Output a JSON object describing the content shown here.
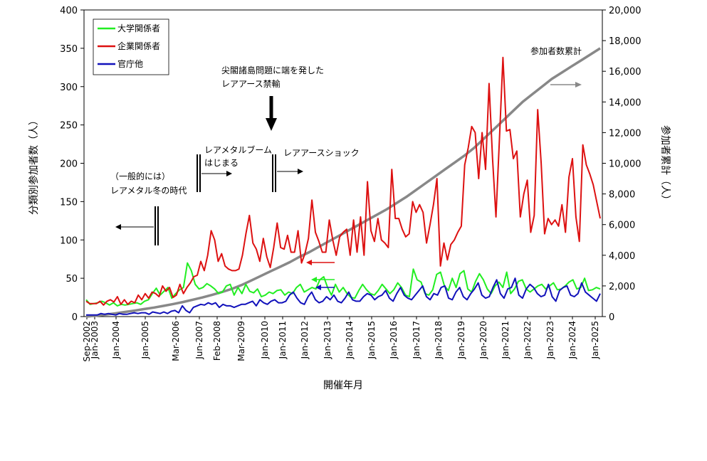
{
  "chart_data": {
    "type": "line",
    "xlabel": "開催年月",
    "ylabel_left": "分類別参加者数（人）",
    "ylabel_right": "参加者累計（人）",
    "ylim_left": [
      0,
      400
    ],
    "ylim_right": [
      0,
      20000
    ],
    "left_ticks": [
      "0",
      "50",
      "100",
      "150",
      "200",
      "250",
      "300",
      "350",
      "400"
    ],
    "right_ticks": [
      "0",
      "2,000",
      "4,000",
      "6,000",
      "8,000",
      "10,000",
      "12,000",
      "14,000",
      "16,000",
      "18,000",
      "20,000"
    ],
    "x_tick_labels": [
      "Sep-2002",
      "Jan-2003",
      "Jan-2004",
      "Jan-2005",
      "Mar-2006",
      "Jun-2007",
      "Feb-2008",
      "Mar-2009",
      "Jan-2010",
      "Jan-2011",
      "Jan-2012",
      "Jan-2013",
      "Jan-2014",
      "Jan-2015",
      "Jan-2016",
      "Jan-2017",
      "Jan-2018",
      "Jan-2019",
      "Jan-2020",
      "Jan-2021",
      "Jan-2022",
      "Jan-2023",
      "Jan-2024",
      "Jan-2025"
    ],
    "legend_position": "top-left",
    "grid": false,
    "series": [
      {
        "name": "大学関係者",
        "color": "#22ee22",
        "axis": "left",
        "values": [
          22,
          16,
          17,
          18,
          20,
          18,
          15,
          18,
          14,
          16,
          15,
          16,
          17,
          18,
          16,
          20,
          22,
          30,
          37,
          28,
          33,
          38,
          24,
          30,
          35,
          38,
          70,
          60,
          42,
          36,
          38,
          43,
          40,
          36,
          30,
          32,
          40,
          42,
          28,
          38,
          30,
          42,
          33,
          31,
          36,
          26,
          28,
          32,
          30,
          34,
          35,
          28,
          32,
          30,
          38,
          42,
          32,
          35,
          38,
          36,
          48,
          52,
          38,
          28,
          42,
          32,
          38,
          30,
          25,
          24,
          34,
          42,
          35,
          30,
          28,
          34,
          42,
          36,
          30,
          35,
          44,
          38,
          28,
          26,
          62,
          48,
          45,
          30,
          28,
          35,
          55,
          58,
          40,
          34,
          50,
          38,
          56,
          60,
          36,
          32,
          46,
          56,
          48,
          36,
          30,
          40,
          45,
          38,
          58,
          30,
          36,
          46,
          48,
          36,
          32,
          36,
          40,
          42,
          36,
          40,
          44,
          35,
          36,
          40,
          45,
          48,
          36,
          38,
          50,
          34,
          35,
          38,
          36
        ]
      },
      {
        "name": "企業関係者",
        "color": "#dd1111",
        "axis": "left",
        "values": [
          20,
          17,
          17,
          17,
          20,
          15,
          20,
          22,
          19,
          26,
          16,
          22,
          16,
          20,
          18,
          28,
          22,
          30,
          24,
          32,
          30,
          26,
          40,
          33,
          38,
          25,
          28,
          42,
          30,
          38,
          44,
          52,
          54,
          72,
          60,
          80,
          112,
          100,
          72,
          82,
          66,
          62,
          60,
          60,
          62,
          80,
          108,
          132,
          96,
          88,
          72,
          102,
          78,
          64,
          90,
          122,
          90,
          88,
          106,
          84,
          84,
          112,
          70,
          82,
          102,
          152,
          110,
          98,
          84,
          84,
          126,
          100,
          80,
          104,
          110,
          114,
          80,
          126,
          84,
          130,
          80,
          176,
          112,
          98,
          128,
          100,
          96,
          90,
          192,
          128,
          128,
          114,
          104,
          108,
          150,
          136,
          146,
          136,
          96,
          120,
          146,
          180,
          66,
          96,
          74,
          94,
          100,
          110,
          118,
          198,
          220,
          248,
          240,
          180,
          240,
          192,
          304,
          206,
          130,
          232,
          338,
          242,
          244,
          206,
          216,
          130,
          160,
          178,
          110,
          132,
          270,
          200,
          108,
          128,
          120,
          126,
          118,
          146,
          110,
          182,
          206,
          130,
          98,
          224,
          198,
          186,
          172,
          150,
          128
        ]
      },
      {
        "name": "官庁他",
        "color": "#1111bb",
        "axis": "left",
        "values": [
          2,
          2,
          2,
          2,
          4,
          3,
          4,
          3,
          2,
          4,
          3,
          3,
          4,
          5,
          4,
          5,
          5,
          3,
          6,
          5,
          4,
          6,
          4,
          7,
          8,
          5,
          14,
          8,
          5,
          12,
          14,
          16,
          15,
          18,
          16,
          18,
          12,
          16,
          14,
          14,
          12,
          14,
          16,
          16,
          18,
          20,
          14,
          22,
          18,
          16,
          20,
          22,
          18,
          18,
          20,
          28,
          32,
          24,
          18,
          16,
          26,
          32,
          22,
          18,
          20,
          26,
          22,
          28,
          20,
          18,
          24,
          32,
          22,
          20,
          20,
          26,
          30,
          28,
          22,
          26,
          28,
          34,
          24,
          20,
          30,
          38,
          28,
          24,
          22,
          28,
          34,
          40,
          26,
          22,
          30,
          28,
          38,
          40,
          24,
          22,
          32,
          38,
          26,
          22,
          30,
          36,
          44,
          28,
          24,
          26,
          38,
          48,
          30,
          24,
          36,
          38,
          50,
          28,
          24,
          36,
          42,
          38,
          30,
          26,
          28,
          42,
          26,
          20,
          34,
          38,
          40,
          28,
          26,
          30,
          44,
          32,
          28,
          24,
          20,
          30
        ]
      },
      {
        "name": "参加者数累計",
        "color": "#888888",
        "axis": "right",
        "values": [
          0,
          60,
          130,
          210,
          300,
          390,
          490,
          590,
          700,
          820,
          950,
          1100,
          1250,
          1420,
          1600,
          1800,
          2050,
          2350,
          2650,
          2950,
          3250,
          3550,
          3900,
          4200,
          4550,
          4900,
          5250,
          5600,
          5950,
          6300,
          6650,
          7000,
          7400,
          7800,
          8250,
          8700,
          9150,
          9600,
          10050,
          10500,
          11000,
          11600,
          12200,
          12800,
          13400,
          14000,
          14500,
          15000,
          15500,
          15900,
          16300,
          16700,
          17100,
          17500
        ]
      }
    ],
    "annotations": [
      {
        "text_lines": [
          "（一般的には）",
          "レアメタル冬の時代"
        ]
      },
      {
        "text_lines": [
          "レアメタルブーム",
          "はじまる"
        ]
      },
      {
        "text_lines": [
          "尖閣諸島問題に端を発した",
          "レアアース禁輸"
        ]
      },
      {
        "text_lines": [
          "レアアースショック"
        ]
      },
      {
        "text_lines": [
          "参加者数累計"
        ]
      }
    ]
  }
}
